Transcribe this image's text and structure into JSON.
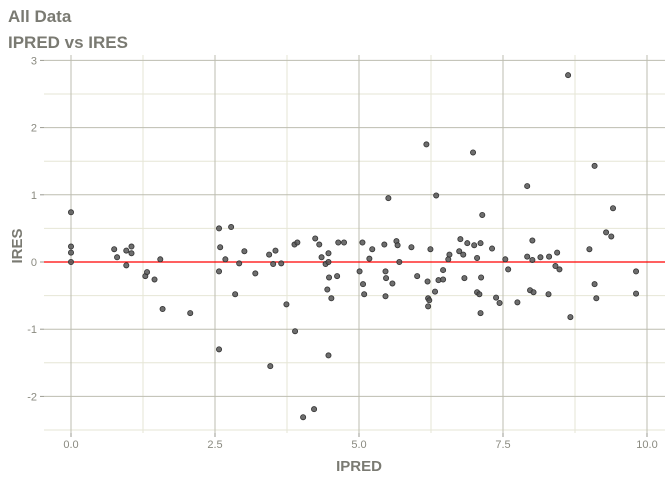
{
  "chart_data": {
    "type": "scatter",
    "title": "All Data",
    "subtitle": "IPRED vs IRES",
    "xlabel": "IPRED",
    "ylabel": "IRES",
    "xlim": [
      -0.47,
      10.3
    ],
    "ylim": [
      -2.55,
      3.1
    ],
    "xticks": [
      0,
      2.5,
      5,
      7.5,
      10
    ],
    "xtick_labels": [
      "0.0",
      "2.5",
      "5.0",
      "7.5",
      "10.0"
    ],
    "yticks": [
      -2,
      -1,
      0,
      1,
      2,
      3
    ],
    "ytick_labels": [
      "-2",
      "-1",
      "0",
      "1",
      "2",
      "3"
    ],
    "grid": true,
    "reference_line": {
      "y": 0,
      "color": "#ff0000"
    },
    "point_color": "#555555",
    "points": [
      [
        0,
        0.74
      ],
      [
        0,
        0.23
      ],
      [
        0,
        0.14
      ],
      [
        0,
        0
      ],
      [
        0.75,
        0.19
      ],
      [
        0.8,
        0.07
      ],
      [
        0.96,
        0.17
      ],
      [
        1.05,
        0.23
      ],
      [
        1.05,
        0.13
      ],
      [
        0.96,
        -0.05
      ],
      [
        1.55,
        0.04
      ],
      [
        1.29,
        -0.21
      ],
      [
        1.32,
        -0.15
      ],
      [
        1.45,
        -0.26
      ],
      [
        1.59,
        -0.7
      ],
      [
        2.07,
        -0.76
      ],
      [
        2.57,
        0.5
      ],
      [
        2.78,
        0.52
      ],
      [
        2.59,
        0.22
      ],
      [
        2.68,
        0.04
      ],
      [
        2.57,
        -0.14
      ],
      [
        2.92,
        -0.02
      ],
      [
        3.01,
        0.16
      ],
      [
        2.85,
        -0.48
      ],
      [
        3.2,
        -0.17
      ],
      [
        3.44,
        0.11
      ],
      [
        3.55,
        0.17
      ],
      [
        3.51,
        -0.03
      ],
      [
        3.65,
        -0.02
      ],
      [
        3.74,
        -0.63
      ],
      [
        2.57,
        -1.3
      ],
      [
        3.46,
        -1.55
      ],
      [
        3.89,
        -1.03
      ],
      [
        3.88,
        0.26
      ],
      [
        3.93,
        0.29
      ],
      [
        4.24,
        0.35
      ],
      [
        4.31,
        0.26
      ],
      [
        4.35,
        0.07
      ],
      [
        4.47,
        0.13
      ],
      [
        4.42,
        -0.03
      ],
      [
        4.47,
        0
      ],
      [
        4.48,
        -0.23
      ],
      [
        4.62,
        -0.21
      ],
      [
        4.45,
        -0.41
      ],
      [
        4.52,
        -0.54
      ],
      [
        4.47,
        -1.39
      ],
      [
        4.03,
        -2.31
      ],
      [
        4.22,
        -2.19
      ],
      [
        4.64,
        0.29
      ],
      [
        5.51,
        0.95
      ],
      [
        6.34,
        0.99
      ],
      [
        7.14,
        0.7
      ],
      [
        9.41,
        0.8
      ],
      [
        9.29,
        0.44
      ],
      [
        9.38,
        0.38
      ],
      [
        4.74,
        0.29
      ],
      [
        5.06,
        0.29
      ],
      [
        5.23,
        0.19
      ],
      [
        5.18,
        0.05
      ],
      [
        5.44,
        0.26
      ],
      [
        5.65,
        0.31
      ],
      [
        5.67,
        0.25
      ],
      [
        5.7,
        0
      ],
      [
        5.91,
        0.22
      ],
      [
        6.24,
        0.19
      ],
      [
        5.01,
        -0.14
      ],
      [
        5.07,
        -0.33
      ],
      [
        5.09,
        -0.48
      ],
      [
        5.46,
        -0.14
      ],
      [
        5.47,
        -0.24
      ],
      [
        5.58,
        -0.32
      ],
      [
        5.46,
        -0.51
      ],
      [
        6.01,
        -0.21
      ],
      [
        6.19,
        -0.29
      ],
      [
        6.2,
        -0.54
      ],
      [
        6.22,
        -0.57
      ],
      [
        6.2,
        -0.66
      ],
      [
        6.32,
        -0.44
      ],
      [
        6.38,
        -0.27
      ],
      [
        6.46,
        -0.26
      ],
      [
        6.46,
        -0.12
      ],
      [
        6.55,
        0.04
      ],
      [
        6.57,
        0.11
      ],
      [
        6.74,
        0.16
      ],
      [
        6.76,
        0.34
      ],
      [
        6.81,
        0.11
      ],
      [
        6.88,
        0.28
      ],
      [
        7.0,
        0.25
      ],
      [
        7.11,
        0.28
      ],
      [
        7.05,
        0.06
      ],
      [
        6.83,
        -0.24
      ],
      [
        7.12,
        -0.23
      ],
      [
        7.05,
        -0.45
      ],
      [
        7.09,
        -0.48
      ],
      [
        7.11,
        -0.76
      ],
      [
        7.31,
        0.2
      ],
      [
        7.38,
        -0.53
      ],
      [
        7.44,
        -0.61
      ],
      [
        7.54,
        0.04
      ],
      [
        7.59,
        -0.11
      ],
      [
        7.75,
        -0.6
      ],
      [
        7.92,
        0.08
      ],
      [
        8.01,
        0.32
      ],
      [
        8.01,
        0.03
      ],
      [
        7.97,
        -0.42
      ],
      [
        8.03,
        -0.45
      ],
      [
        8.15,
        0.07
      ],
      [
        8.3,
        0.08
      ],
      [
        8.44,
        0.14
      ],
      [
        8.41,
        -0.06
      ],
      [
        8.48,
        -0.11
      ],
      [
        8.29,
        -0.48
      ],
      [
        8.67,
        -0.82
      ],
      [
        9.0,
        0.19
      ],
      [
        9.09,
        -0.33
      ],
      [
        9.12,
        -0.54
      ],
      [
        9.81,
        -0.14
      ],
      [
        9.81,
        -0.47
      ],
      [
        8.63,
        2.78
      ],
      [
        6.17,
        1.75
      ],
      [
        6.98,
        1.63
      ],
      [
        9.09,
        1.43
      ],
      [
        7.92,
        1.13
      ]
    ]
  }
}
